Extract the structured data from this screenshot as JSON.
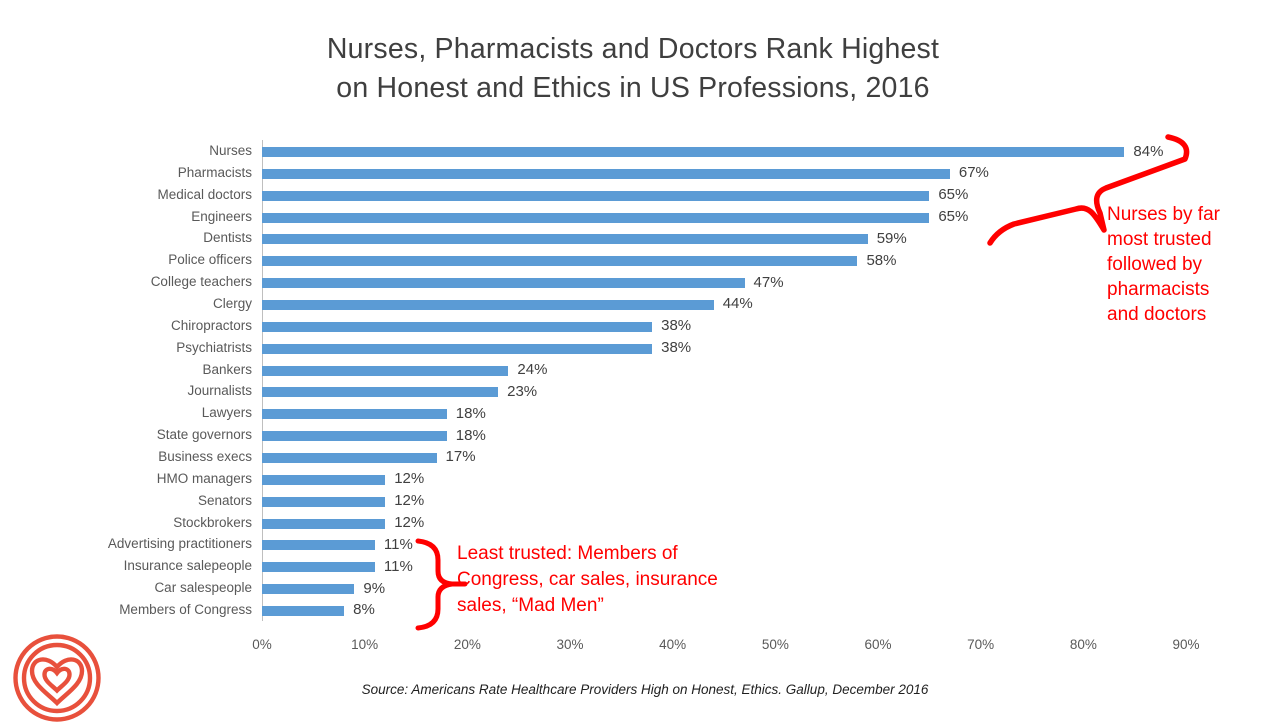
{
  "title": {
    "line1": "Nurses, Pharmacists and Doctors Rank Highest",
    "line2": "on Honest and Ethics in US Professions, 2016"
  },
  "chart_data": {
    "type": "bar",
    "orientation": "horizontal",
    "title": "Nurses, Pharmacists and Doctors Rank Highest on Honest and Ethics in US Professions, 2016",
    "categories": [
      "Nurses",
      "Pharmacists",
      "Medical doctors",
      "Engineers",
      "Dentists",
      "Police officers",
      "College teachers",
      "Clergy",
      "Chiropractors",
      "Psychiatrists",
      "Bankers",
      "Journalists",
      "Lawyers",
      "State governors",
      "Business execs",
      "HMO managers",
      "Senators",
      "Stockbrokers",
      "Advertising practitioners",
      "Insurance salepeople",
      "Car salespeople",
      "Members of Congress"
    ],
    "values": [
      84,
      67,
      65,
      65,
      59,
      58,
      47,
      44,
      38,
      38,
      24,
      23,
      18,
      18,
      17,
      12,
      12,
      12,
      11,
      11,
      9,
      8
    ],
    "unit": "%",
    "xlabel": "",
    "ylabel": "",
    "xlim": [
      0,
      90
    ],
    "x_ticks": [
      "0%",
      "10%",
      "20%",
      "30%",
      "40%",
      "50%",
      "60%",
      "70%",
      "80%",
      "90%"
    ],
    "grid": false,
    "data_labels": true,
    "bar_color": "#5b9bd5",
    "axis_color": "#bfbfbf"
  },
  "annotations": {
    "color": "#ff0000",
    "top_right": {
      "text": "Nurses by far\nmost trusted\nfollowed by\npharmacists\nand doctors"
    },
    "bottom": {
      "text": "Least trusted: Members of\nCongress, car sales, insurance\nsales, “Mad Men”"
    }
  },
  "source": "Source: Americans Rate Healthcare Providers High on Honest, Ethics. Gallup, December 2016",
  "logo": {
    "name": "heart-in-target-logo",
    "color": "#e8503c"
  }
}
